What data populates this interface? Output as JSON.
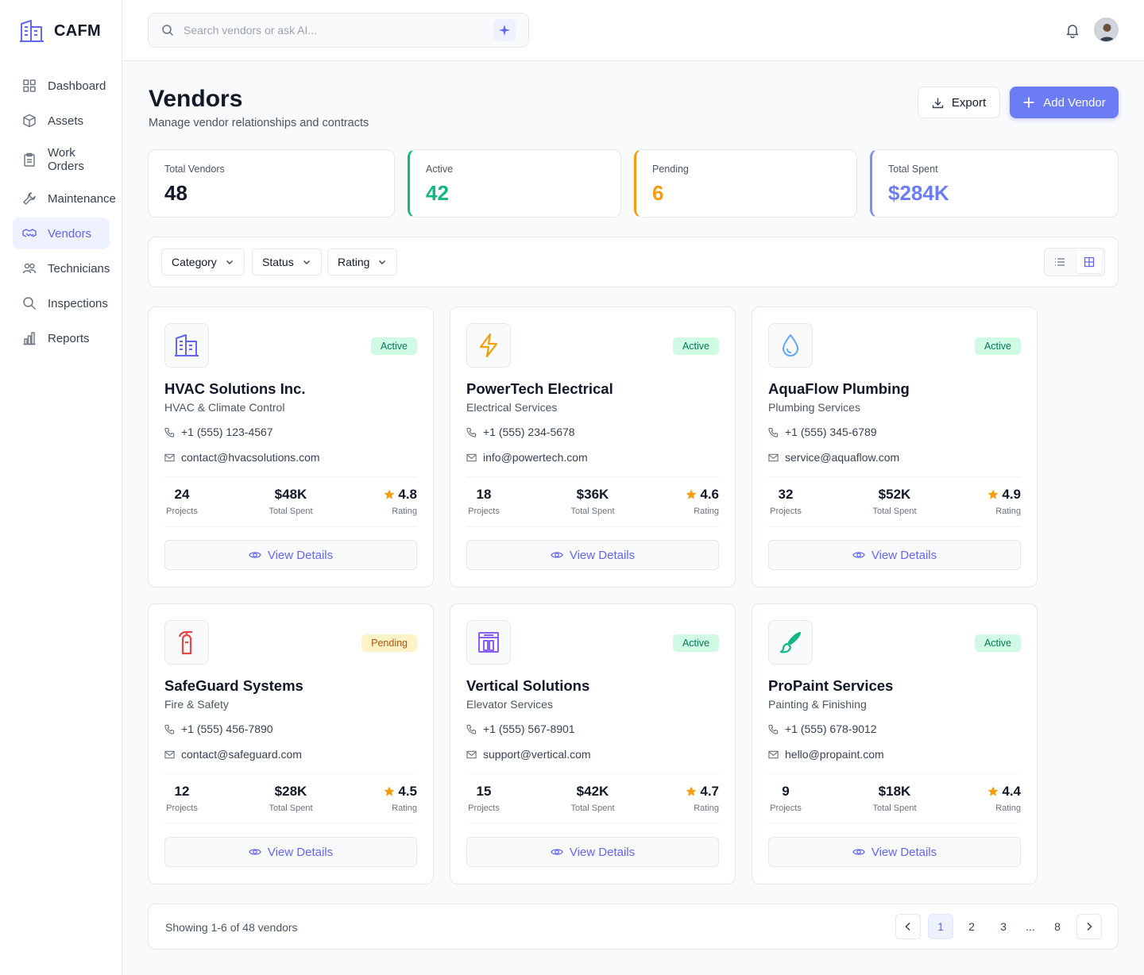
{
  "brand": {
    "name": "CAFM",
    "accent": "#6366f1"
  },
  "sidebar": {
    "items": [
      {
        "label": "Dashboard",
        "icon": "grid-icon"
      },
      {
        "label": "Assets",
        "icon": "cube-icon"
      },
      {
        "label": "Work\nOrders",
        "icon": "clipboard-icon"
      },
      {
        "label": "Maintenance",
        "icon": "wrench-icon"
      },
      {
        "label": "Vendors",
        "icon": "handshake-icon",
        "active": true
      },
      {
        "label": "Technicians",
        "icon": "users-icon"
      },
      {
        "label": "Inspections",
        "icon": "search-icon"
      },
      {
        "label": "Reports",
        "icon": "bar-chart-icon"
      }
    ]
  },
  "search": {
    "placeholder": "Search vendors or ask AI..."
  },
  "header": {
    "title": "Vendors",
    "subtitle": "Manage vendor relationships and contracts",
    "export_label": "Export",
    "add_label": "Add Vendor"
  },
  "stats": [
    {
      "label": "Total Vendors",
      "value": "48",
      "color": "#111827"
    },
    {
      "label": "Active",
      "value": "42",
      "color": "#10b981"
    },
    {
      "label": "Pending",
      "value": "6",
      "color": "#f59e0b"
    },
    {
      "label": "Total Spent",
      "value": "$284K",
      "color": "#6b7cf5"
    }
  ],
  "filters": {
    "category": "Category",
    "status": "Status",
    "rating": "Rating"
  },
  "vendors": [
    {
      "name": "HVAC Solutions Inc.",
      "category": "HVAC & Climate Control",
      "phone": "+1 (555) 123-4567",
      "email": "contact@hvacsolutions.com",
      "status": "Active",
      "projects": "24",
      "spent": "$48K",
      "rating": "4.8",
      "icon": "building-icon",
      "icon_color": "#6366f1"
    },
    {
      "name": "PowerTech Electrical",
      "category": "Electrical Services",
      "phone": "+1 (555) 234-5678",
      "email": "info@powertech.com",
      "status": "Active",
      "projects": "18",
      "spent": "$36K",
      "rating": "4.6",
      "icon": "lightning-icon",
      "icon_color": "#f59e0b"
    },
    {
      "name": "AquaFlow Plumbing",
      "category": "Plumbing Services",
      "phone": "+1 (555) 345-6789",
      "email": "service@aquaflow.com",
      "status": "Active",
      "projects": "32",
      "spent": "$52K",
      "rating": "4.9",
      "icon": "droplet-icon",
      "icon_color": "#60a5fa"
    },
    {
      "name": "SafeGuard Systems",
      "category": "Fire & Safety",
      "phone": "+1 (555) 456-7890",
      "email": "contact@safeguard.com",
      "status": "Pending",
      "projects": "12",
      "spent": "$28K",
      "rating": "4.5",
      "icon": "fire-extinguisher-icon",
      "icon_color": "#ef4444"
    },
    {
      "name": "Vertical Solutions",
      "category": "Elevator Services",
      "phone": "+1 (555) 567-8901",
      "email": "support@vertical.com",
      "status": "Active",
      "projects": "15",
      "spent": "$42K",
      "rating": "4.7",
      "icon": "elevator-icon",
      "icon_color": "#8b5cf6"
    },
    {
      "name": "ProPaint Services",
      "category": "Painting & Finishing",
      "phone": "+1 (555) 678-9012",
      "email": "hello@propaint.com",
      "status": "Active",
      "projects": "9",
      "spent": "$18K",
      "rating": "4.4",
      "icon": "paintbrush-icon",
      "icon_color": "#10b981"
    }
  ],
  "card_labels": {
    "projects": "Projects",
    "spent": "Total Spent",
    "rating": "Rating",
    "view": "View Details"
  },
  "pagination": {
    "info": "Showing 1-6 of 48 vendors",
    "pages": [
      "1",
      "2",
      "3",
      "...",
      "8"
    ],
    "current": "1"
  }
}
